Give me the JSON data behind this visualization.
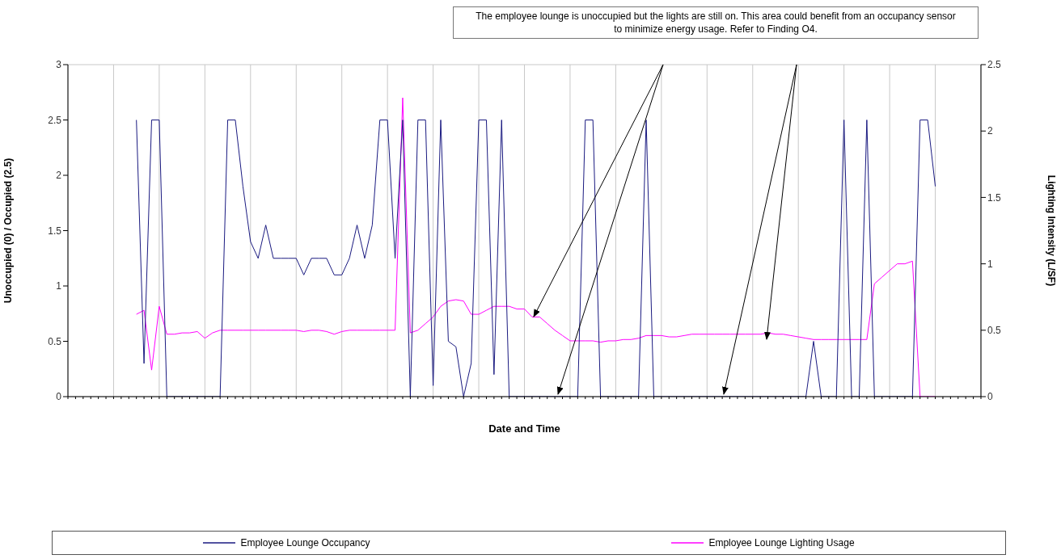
{
  "chart_data": {
    "type": "line",
    "xlabel": "Date and Time",
    "ylabel": "Unoccupied (0) / Occupied (2.5)",
    "y2label": "Lighting Intensity (L/SF)",
    "annotations": [
      "The employee lounge is unoccupied but the lights are still on.  This area could benefit from an occupancy sensor to minimize energy usage.  Refer to Finding O4."
    ],
    "categories": [
      null,
      null,
      null,
      null,
      null,
      null,
      null,
      null,
      null,
      null,
      null,
      null,
      null,
      null,
      null,
      null,
      null,
      null,
      null,
      null,
      null,
      null,
      null,
      null,
      null,
      null,
      null,
      null,
      null,
      null,
      null,
      null,
      null,
      null,
      null,
      null,
      null,
      null,
      null,
      null,
      null,
      null,
      null,
      null,
      null,
      null,
      null,
      null,
      null,
      null,
      null,
      null,
      null,
      null,
      null,
      null,
      null,
      null,
      null,
      null,
      null,
      null,
      null,
      null,
      null,
      null,
      null,
      null,
      null,
      null,
      null,
      null,
      null,
      null,
      null,
      null,
      null,
      null,
      null,
      null,
      null,
      null,
      null,
      null,
      null,
      null,
      null,
      null,
      null,
      null,
      null,
      null,
      null,
      null,
      null,
      null,
      null,
      null,
      null,
      null,
      null,
      null,
      null,
      null,
      null,
      null,
      null,
      null,
      null,
      null,
      null,
      null,
      null,
      null,
      null,
      null,
      null,
      null,
      null,
      null,
      null
    ],
    "series": [
      {
        "name": "Employee Lounge Occupancy",
        "color": "#1a1a80",
        "values": [
          null,
          null,
          null,
          null,
          null,
          null,
          null,
          null,
          null,
          2.5,
          0.3,
          2.5,
          2.5,
          0,
          0,
          0,
          0,
          0,
          0,
          0,
          0,
          2.5,
          2.5,
          1.9,
          1.4,
          1.25,
          1.55,
          1.25,
          1.25,
          1.25,
          1.25,
          1.1,
          1.25,
          1.25,
          1.25,
          1.1,
          1.1,
          1.25,
          1.55,
          1.25,
          1.55,
          2.5,
          2.5,
          1.25,
          2.5,
          0,
          2.5,
          2.5,
          0.1,
          2.5,
          0.5,
          0.45,
          0,
          0.3,
          2.5,
          2.5,
          0.2,
          2.5,
          0,
          0,
          0,
          0,
          0,
          0,
          0,
          0,
          0,
          0,
          2.5,
          2.5,
          0,
          0,
          0,
          0,
          0,
          0,
          2.5,
          0,
          0,
          0,
          0,
          0,
          0,
          0,
          0,
          0,
          0,
          0,
          0,
          0,
          0,
          0,
          0,
          0,
          0,
          0,
          0,
          0,
          0.5,
          0,
          0,
          0,
          2.5,
          0,
          0,
          2.5,
          0,
          0,
          0,
          0,
          0,
          0,
          2.5,
          2.5,
          1.9,
          null,
          null,
          null,
          null,
          null,
          null
        ]
      },
      {
        "name": "Employee Lounge Lighting Usage",
        "color": "#ff00ff",
        "axis": "y2",
        "values": [
          null,
          null,
          null,
          null,
          null,
          null,
          null,
          null,
          null,
          0.62,
          0.65,
          0.2,
          0.68,
          0.47,
          0.47,
          0.48,
          0.48,
          0.49,
          0.44,
          0.48,
          0.5,
          0.5,
          0.5,
          0.5,
          0.5,
          0.5,
          0.5,
          0.5,
          0.5,
          0.5,
          0.5,
          0.49,
          0.5,
          0.5,
          0.49,
          0.47,
          0.49,
          0.5,
          0.5,
          0.5,
          0.5,
          0.5,
          0.5,
          0.5,
          2.25,
          0.48,
          0.5,
          0.55,
          0.6,
          0.68,
          0.72,
          0.73,
          0.72,
          0.62,
          0.62,
          0.65,
          0.68,
          0.68,
          0.68,
          0.66,
          0.66,
          0.6,
          0.6,
          0.55,
          0.5,
          0.46,
          0.42,
          0.42,
          0.42,
          0.42,
          0.41,
          0.42,
          0.42,
          0.43,
          0.43,
          0.44,
          0.46,
          0.46,
          0.46,
          0.45,
          0.45,
          0.46,
          0.47,
          0.47,
          0.47,
          0.47,
          0.47,
          0.47,
          0.47,
          0.47,
          0.47,
          0.47,
          0.48,
          0.47,
          0.47,
          0.46,
          0.45,
          0.44,
          0.43,
          0.43,
          0.43,
          0.43,
          0.43,
          0.43,
          0.43,
          0.43,
          0.85,
          0.9,
          0.95,
          1.0,
          1.0,
          1.02,
          0,
          0,
          0,
          null,
          null,
          null,
          null,
          null,
          null
        ]
      }
    ],
    "ylim": [
      0,
      3
    ],
    "yticks": [
      0,
      0.5,
      1,
      1.5,
      2,
      2.5,
      3
    ],
    "y2lim": [
      0,
      2.5
    ],
    "y2ticks": [
      0,
      0.5,
      1,
      1.5,
      2,
      2.5
    ],
    "grid": true,
    "legend": "bottom",
    "marker": "none",
    "line_style": "solid"
  }
}
